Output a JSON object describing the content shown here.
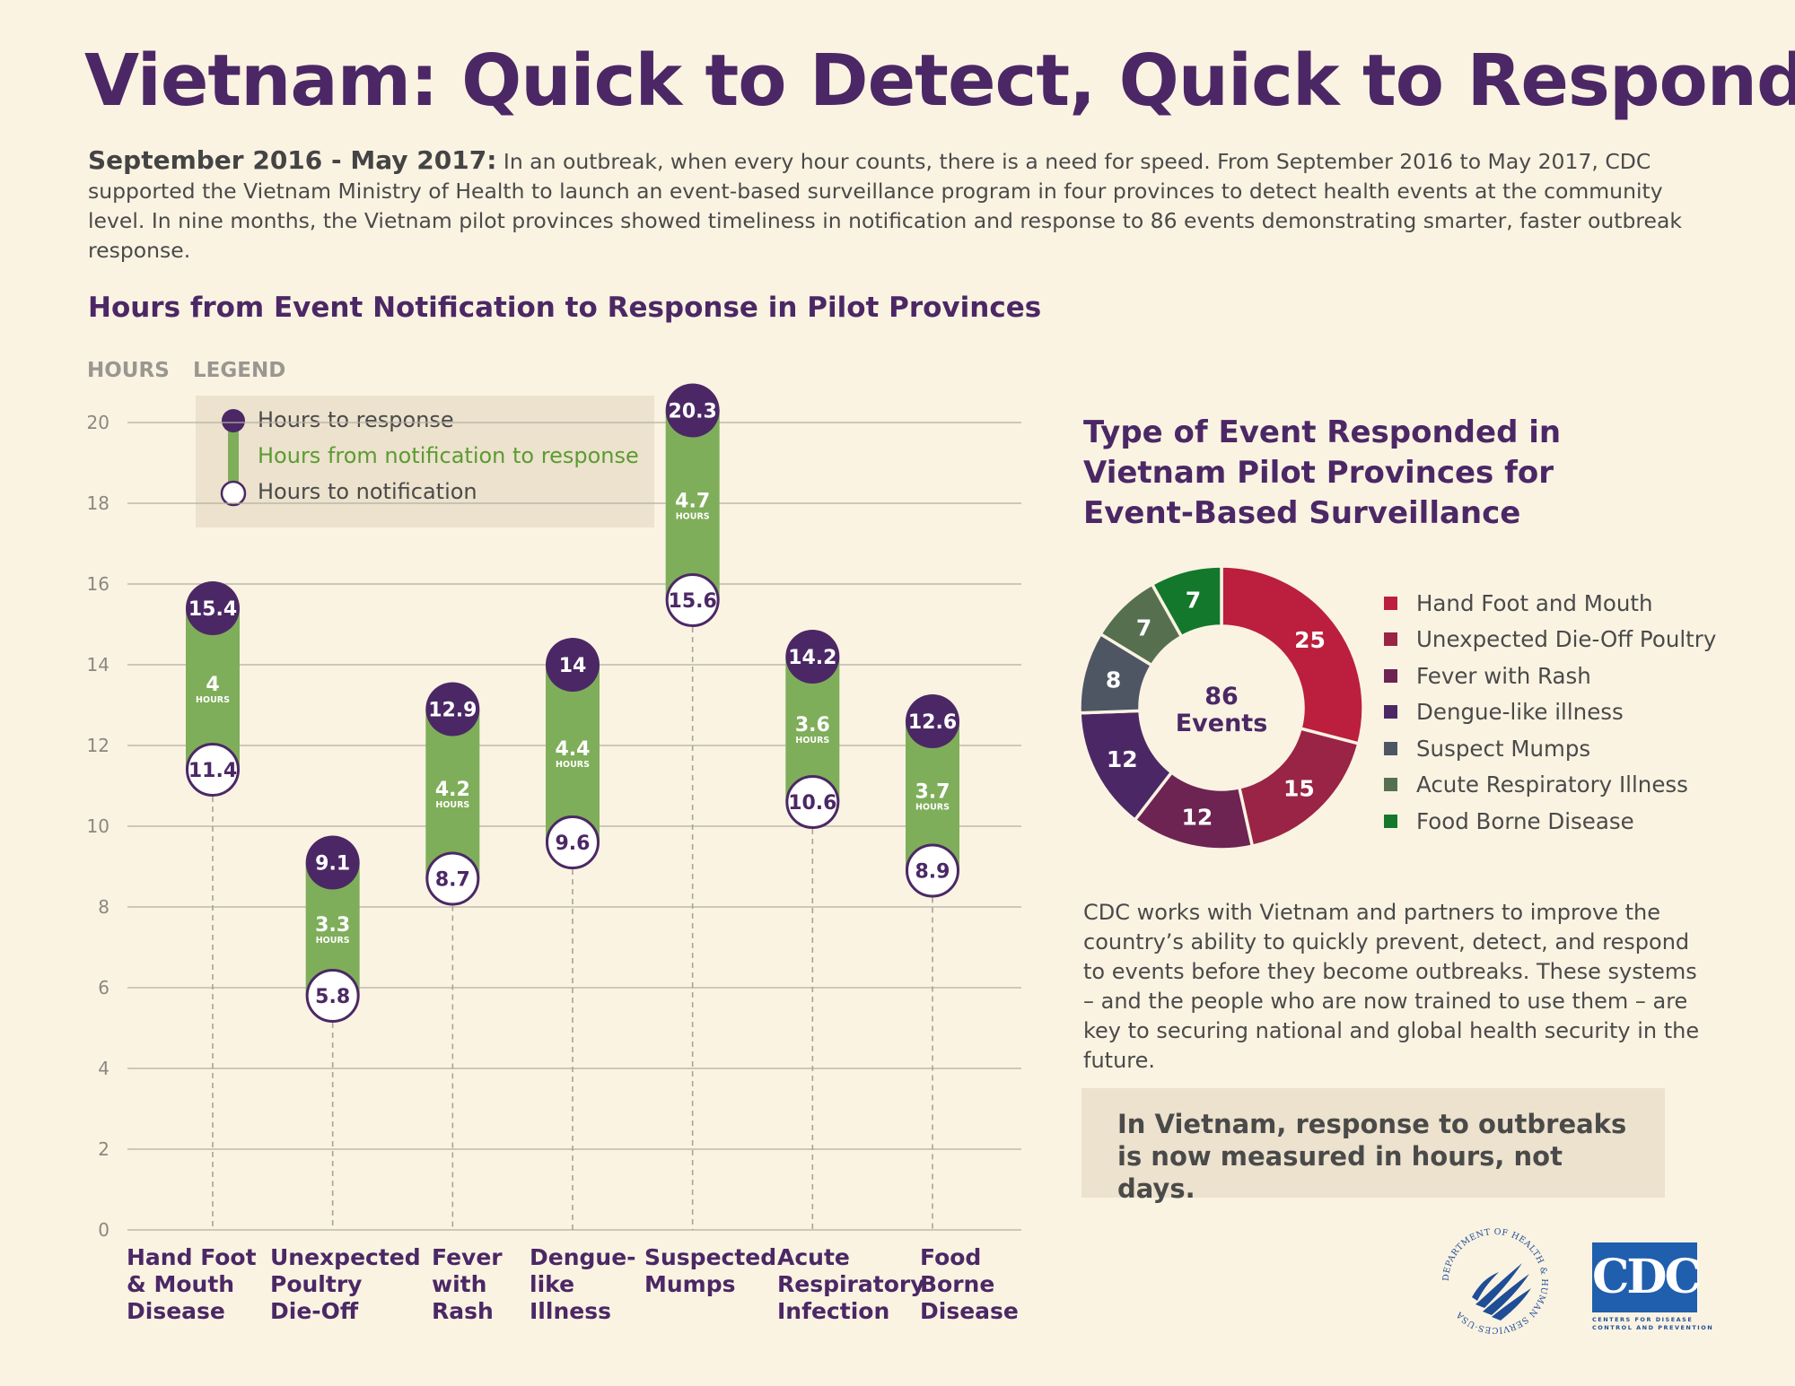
{
  "title": "Vietnam: Quick to Detect, Quick to Respond",
  "intro": {
    "lead": "September 2016 - May 2017:",
    "text": " In an outbreak, when every hour counts, there is a need for speed. From September 2016 to May 2017, CDC supported the Vietnam Ministry of Health to launch an event-based surveillance program in four provinces to detect health events at the community level. In nine months, the Vietnam pilot provinces showed timeliness in notification and response to 86 events demonstrating smarter, faster outbreak response."
  },
  "colors": {
    "purple": "#4b2865",
    "green": "#7fae5a",
    "green_text": "#5c9b32",
    "grid": "#b3aea3"
  },
  "chart_data": [
    {
      "type": "bar",
      "title": "Hours from Event Notification to Response in Pilot Provinces",
      "ylabel": "HOURS",
      "legend_title": "LEGEND",
      "legend": {
        "response": "Hours to response",
        "duration": "Hours from notification to response",
        "notification": "Hours to notification"
      },
      "ylim": [
        0,
        20
      ],
      "yticks": [
        "0",
        "2",
        "4",
        "6",
        "8",
        "10",
        "12",
        "14",
        "16",
        "18",
        "20"
      ],
      "unit_label": "HOURS",
      "categories": [
        [
          "Hand Foot",
          "& Mouth",
          "Disease"
        ],
        [
          "Unexpected",
          "Poultry",
          "Die-Off"
        ],
        [
          "Fever",
          "with",
          "Rash"
        ],
        [
          "Dengue-",
          "like",
          "Illness"
        ],
        [
          "Suspected",
          "Mumps"
        ],
        [
          "Acute",
          "Respiratory",
          "Infection"
        ],
        [
          "Food",
          "Borne",
          "Disease"
        ]
      ],
      "series": [
        {
          "name": "Hours to notification",
          "values": [
            11.4,
            5.8,
            8.7,
            9.6,
            15.6,
            10.6,
            8.9
          ],
          "labels": [
            "11.4",
            "5.8",
            "8.7",
            "9.6",
            "15.6",
            "10.6",
            "8.9"
          ]
        },
        {
          "name": "Hours to response",
          "values": [
            15.4,
            9.1,
            12.9,
            14,
            20.3,
            14.2,
            12.6
          ],
          "labels": [
            "15.4",
            "9.1",
            "12.9",
            "14",
            "20.3",
            "14.2",
            "12.6"
          ]
        },
        {
          "name": "Hours from notification to response",
          "values": [
            4,
            3.3,
            4.2,
            4.4,
            4.7,
            3.6,
            3.7
          ],
          "labels": [
            "4",
            "3.3",
            "4.2",
            "4.4",
            "4.7",
            "3.6",
            "3.7"
          ]
        }
      ]
    },
    {
      "type": "pie",
      "title": "Type of Event Responded in Vietnam Pilot Provinces for Event-Based Surveillance",
      "center_value": "86",
      "center_label": "Events",
      "categories": [
        "Hand Foot and Mouth",
        "Unexpected Die-Off Poultry",
        "Fever with Rash",
        "Dengue-like illness",
        "Suspect Mumps",
        "Acute Respiratory Illness",
        "Food Borne Disease"
      ],
      "values": [
        25,
        15,
        12,
        12,
        8,
        7,
        7
      ],
      "labels": [
        "25",
        "15",
        "12",
        "12",
        "8",
        "7",
        "7"
      ],
      "colors": [
        "#bb1f3d",
        "#9a2446",
        "#6d2453",
        "#4b2865",
        "#4e5663",
        "#56704f",
        "#13782c"
      ]
    }
  ],
  "paragraph": "CDC works with Vietnam and partners to improve the country’s ability to quickly prevent, detect, and respond to events before they become outbreaks. These systems – and the people who are now trained to use them – are key to securing national and global health security in the future.",
  "callout": "In Vietnam, response to outbreaks is now measured in hours, not days.",
  "logos": {
    "hhs": "DEPARTMENT OF HEALTH & HUMAN SERVICES·USA",
    "cdc": "CDC",
    "cdc_sub1": "CENTERS FOR DISEASE",
    "cdc_sub2": "CONTROL AND PREVENTION"
  }
}
